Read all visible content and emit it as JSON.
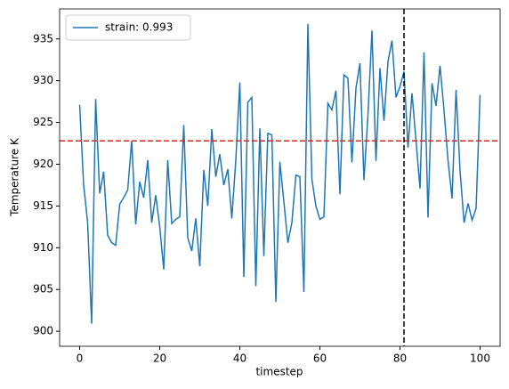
{
  "chart_data": {
    "type": "line",
    "xlabel": "timestep",
    "ylabel": "Temperature K",
    "x": [
      0,
      1,
      2,
      3,
      4,
      5,
      6,
      7,
      8,
      9,
      10,
      11,
      12,
      13,
      14,
      15,
      16,
      17,
      18,
      19,
      20,
      21,
      22,
      23,
      24,
      25,
      26,
      27,
      28,
      29,
      30,
      31,
      32,
      33,
      34,
      35,
      36,
      37,
      38,
      39,
      40,
      41,
      42,
      43,
      44,
      45,
      46,
      47,
      48,
      49,
      50,
      51,
      52,
      53,
      54,
      55,
      56,
      57,
      58,
      59,
      60,
      61,
      62,
      63,
      64,
      65,
      66,
      67,
      68,
      69,
      70,
      71,
      72,
      73,
      74,
      75,
      76,
      77,
      78,
      79,
      80,
      81,
      82,
      83,
      84,
      85,
      86,
      87,
      88,
      89,
      90,
      91,
      92,
      93,
      94,
      95,
      96,
      97,
      98,
      99,
      100
    ],
    "series": [
      {
        "name": "strain: 0.993",
        "color": "#1f77b4",
        "values": [
          927.1,
          917.5,
          913,
          900.9,
          927.8,
          916.5,
          919.1,
          911.5,
          910.6,
          910.3,
          915.2,
          916,
          916.9,
          922.8,
          912.8,
          917.9,
          916,
          920.5,
          913,
          916.3,
          912.5,
          907.4,
          920.5,
          912.9,
          913.4,
          913.7,
          924.7,
          911.2,
          909.6,
          913.5,
          907.8,
          919.3,
          915,
          924.2,
          918.5,
          921.2,
          917.5,
          919.4,
          913.5,
          920.5,
          929.8,
          906.5,
          927.4,
          928,
          905.4,
          924.3,
          909,
          923.7,
          923.5,
          903.5,
          920.3,
          915.5,
          910.6,
          913,
          918.7,
          918.5,
          904.7,
          936.8,
          918.2,
          915,
          913.4,
          913.7,
          927.3,
          926.5,
          928.8,
          916.4,
          930.7,
          930.3,
          920.2,
          929.1,
          932.1,
          918.1,
          925.9,
          936,
          920.4,
          931.5,
          925.2,
          932.3,
          934.8,
          928,
          929.3,
          931.1,
          922,
          928.5,
          922.8,
          917.1,
          933.4,
          913.6,
          929.7,
          927,
          931.8,
          926.4,
          920.4,
          915.9,
          928.9,
          919.2,
          913,
          915.3,
          913.3,
          914.7,
          928.3
        ]
      }
    ],
    "hline": {
      "value": 922.8,
      "color": "#d62728"
    },
    "vline": {
      "value": 81,
      "color": "#000000"
    },
    "xlim": [
      -5,
      105
    ],
    "xticks": [
      0,
      20,
      40,
      60,
      80,
      100
    ],
    "ylim": [
      898.2,
      938.6
    ],
    "yticks": [
      900,
      905,
      910,
      915,
      920,
      925,
      930,
      935
    ],
    "legend": "upper-left"
  }
}
